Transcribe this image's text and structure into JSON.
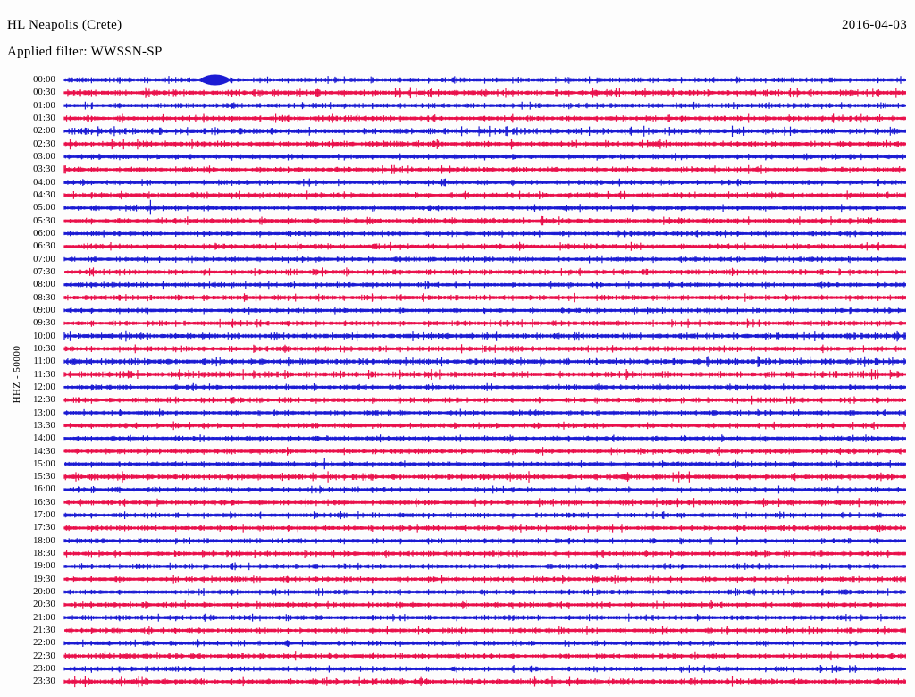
{
  "header": {
    "station_title": "HL Neapolis (Crete)",
    "date": "2016-04-03",
    "filter_line": "Applied filter: WWSSN-SP"
  },
  "axis": {
    "channel_scale_label": "HHZ - 50000"
  },
  "chart_data": {
    "type": "line",
    "subtype": "helicorder-seismogram",
    "title": "HL Neapolis (Crete)",
    "date": "2016-04-03",
    "filter": "WWSSN-SP",
    "channel": "HHZ",
    "scale": 50000,
    "minutes_per_row": 30,
    "minute_tick_interval": 1,
    "legend_position": "none",
    "grid": false,
    "row_colors": {
      "hour": "#1b1bd3",
      "half_hour": "#e9104b"
    },
    "row_labels": [
      "00:00",
      "00:30",
      "01:00",
      "01:30",
      "02:00",
      "02:30",
      "03:00",
      "03:30",
      "04:00",
      "04:30",
      "05:00",
      "05:30",
      "06:00",
      "06:30",
      "07:00",
      "07:30",
      "08:00",
      "08:30",
      "09:00",
      "09:30",
      "10:00",
      "10:30",
      "11:00",
      "11:30",
      "12:00",
      "12:30",
      "13:00",
      "13:30",
      "14:00",
      "14:30",
      "15:00",
      "15:30",
      "16:00",
      "16:30",
      "17:00",
      "17:30",
      "18:00",
      "18:30",
      "19:00",
      "19:30",
      "20:00",
      "20:30",
      "21:00",
      "21:30",
      "22:00",
      "22:30",
      "23:00",
      "23:30"
    ],
    "elevated_noise_rows": [
      "00:30",
      "02:00",
      "02:30",
      "10:00",
      "11:00",
      "11:30",
      "15:30",
      "23:30"
    ],
    "events": [
      {
        "row_label": "00:00",
        "type": "burst",
        "minute": 5.4,
        "duration_minutes": 1.0,
        "relative_amplitude": 4.5
      },
      {
        "row_label": "05:00",
        "type": "spike",
        "minute": 3.1,
        "relative_amplitude": 9
      },
      {
        "row_label": "15:00",
        "type": "spike",
        "minute": 9.3,
        "relative_amplitude": 7
      }
    ]
  }
}
